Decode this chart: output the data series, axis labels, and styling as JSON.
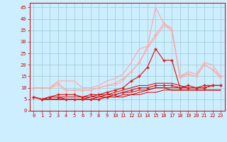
{
  "x": [
    0,
    1,
    2,
    3,
    4,
    5,
    6,
    7,
    8,
    9,
    10,
    11,
    12,
    13,
    14,
    15,
    16,
    17,
    18,
    19,
    20,
    21,
    22,
    23
  ],
  "lines": [
    {
      "y": [
        6,
        5,
        6,
        7,
        7,
        7,
        6,
        7,
        7,
        8,
        9,
        10,
        13,
        15,
        19,
        27,
        22,
        22,
        10,
        11,
        10,
        11,
        11,
        11
      ],
      "color": "#dd2222",
      "lw": 0.9,
      "marker": "D",
      "ms": 2.0
    },
    {
      "y": [
        6,
        5,
        6,
        6,
        5,
        5,
        5,
        5,
        5,
        6,
        7,
        8,
        9,
        10,
        10,
        11,
        11,
        11,
        10,
        10,
        10,
        10,
        11,
        11
      ],
      "color": "#dd2222",
      "lw": 0.9,
      "marker": "D",
      "ms": 2.0
    },
    {
      "y": [
        6,
        5,
        5,
        5,
        5,
        5,
        5,
        5,
        6,
        6,
        6,
        7,
        7,
        8,
        9,
        10,
        10,
        9,
        9,
        9,
        9,
        9,
        9,
        9
      ],
      "color": "#cc0000",
      "lw": 0.7,
      "marker": null,
      "ms": 0
    },
    {
      "y": [
        6,
        5,
        5,
        5,
        5,
        5,
        5,
        6,
        6,
        7,
        7,
        8,
        8,
        9,
        9,
        10,
        10,
        10,
        10,
        10,
        10,
        10,
        11,
        11
      ],
      "color": "#cc0000",
      "lw": 0.7,
      "marker": null,
      "ms": 0
    },
    {
      "y": [
        6,
        5,
        6,
        6,
        6,
        6,
        6,
        6,
        7,
        7,
        8,
        9,
        10,
        11,
        11,
        12,
        12,
        12,
        11,
        10,
        10,
        10,
        11,
        11
      ],
      "color": "#cc0000",
      "lw": 0.7,
      "marker": null,
      "ms": 0
    },
    {
      "y": [
        6,
        5,
        5,
        5,
        5,
        5,
        5,
        5,
        5,
        6,
        6,
        6,
        7,
        7,
        8,
        8,
        9,
        9,
        9,
        9,
        9,
        9,
        9,
        9
      ],
      "color": "#cc0000",
      "lw": 0.7,
      "marker": null,
      "ms": 0
    },
    {
      "y": [
        10,
        10,
        10,
        12,
        9,
        9,
        9,
        9,
        10,
        11,
        12,
        14,
        17,
        21,
        28,
        33,
        38,
        35,
        15,
        16,
        15,
        20,
        18,
        15
      ],
      "color": "#ffaaaa",
      "lw": 0.9,
      "marker": "D",
      "ms": 2.0
    },
    {
      "y": [
        10,
        10,
        10,
        13,
        13,
        13,
        10,
        10,
        11,
        13,
        14,
        16,
        21,
        27,
        28,
        45,
        38,
        36,
        15,
        17,
        16,
        21,
        20,
        15
      ],
      "color": "#ffaaaa",
      "lw": 0.9,
      "marker": null,
      "ms": 0
    },
    {
      "y": [
        10,
        10,
        10,
        11,
        9,
        9,
        9,
        9,
        10,
        11,
        11,
        13,
        17,
        21,
        27,
        32,
        37,
        35,
        14,
        16,
        15,
        20,
        18,
        14
      ],
      "color": "#ffaaaa",
      "lw": 0.7,
      "marker": null,
      "ms": 0
    }
  ],
  "xlim": [
    -0.5,
    23.5
  ],
  "ylim": [
    0,
    47
  ],
  "yticks": [
    0,
    5,
    10,
    15,
    20,
    25,
    30,
    35,
    40,
    45
  ],
  "xticks": [
    0,
    1,
    2,
    3,
    4,
    5,
    6,
    7,
    8,
    9,
    10,
    11,
    12,
    13,
    14,
    15,
    16,
    17,
    18,
    19,
    20,
    21,
    22,
    23
  ],
  "bg_color": "#cceeff",
  "grid_color": "#99cccc",
  "axis_color": "#cc0000",
  "label_color": "#cc0000",
  "tick_color": "#cc0000",
  "xlabel_fontsize": 6.5,
  "tick_fontsize": 5.0
}
